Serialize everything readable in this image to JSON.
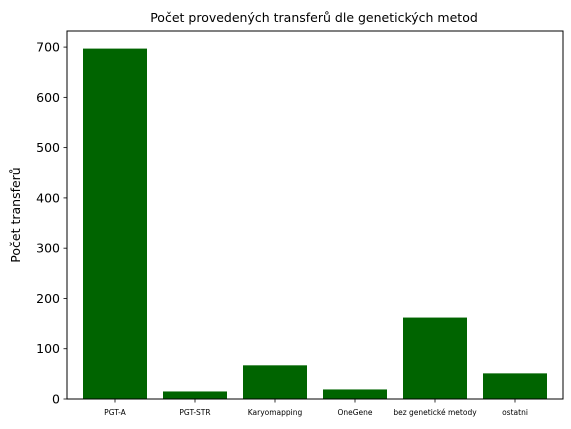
{
  "chart_data": {
    "type": "bar",
    "title": "Počet provedených transferů dle genetických metod",
    "xlabel": "",
    "ylabel": "Počet transferů",
    "categories": [
      "PGT-A",
      "PGT-STR",
      "Karyomapping",
      "OneGene",
      "bez genetické metody",
      "ostatni"
    ],
    "values": [
      697,
      15,
      67,
      19,
      162,
      51
    ],
    "ylim": [
      0,
      732
    ],
    "yticks": [
      0,
      100,
      200,
      300,
      400,
      500,
      600,
      700
    ],
    "bar_color": "#006400",
    "grid": false
  }
}
